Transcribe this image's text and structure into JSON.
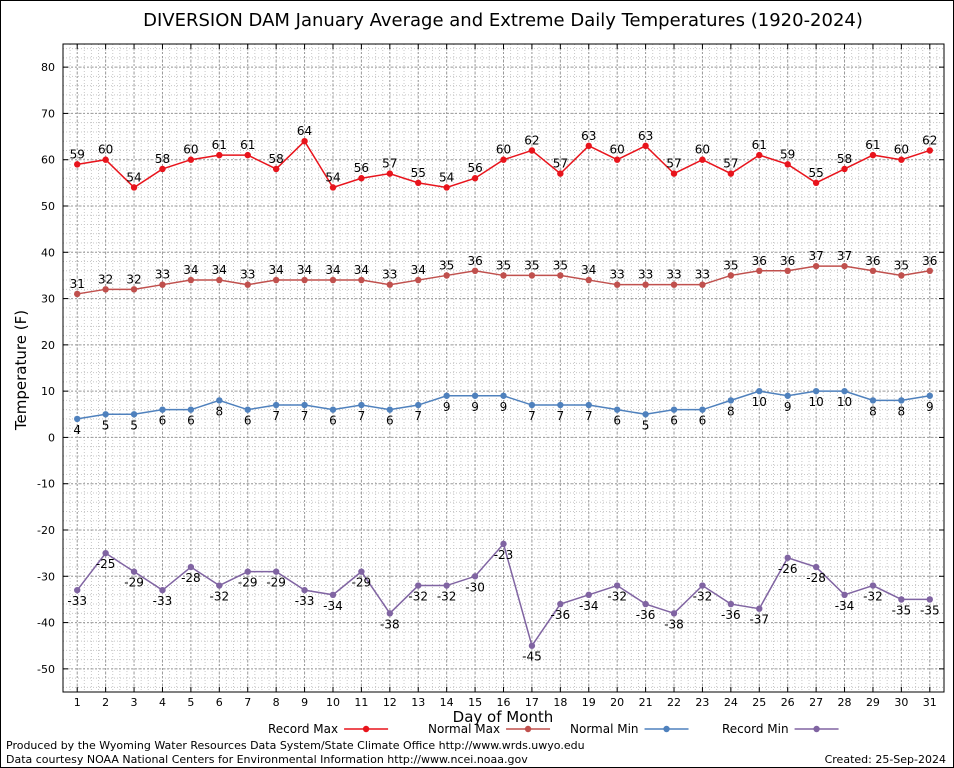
{
  "chart_data": {
    "type": "line",
    "title": "DIVERSION DAM January Average and Extreme Daily Temperatures (1920-2024)",
    "xlabel": "Day of Month",
    "ylabel": "Temperature (F)",
    "ylim": [
      -55,
      85
    ],
    "yticks": [
      -50,
      -40,
      -30,
      -20,
      -10,
      0,
      10,
      20,
      30,
      40,
      50,
      60,
      70,
      80
    ],
    "grid": true,
    "legend_position": "bottom",
    "x": [
      1,
      2,
      3,
      4,
      5,
      6,
      7,
      8,
      9,
      10,
      11,
      12,
      13,
      14,
      15,
      16,
      17,
      18,
      19,
      20,
      21,
      22,
      23,
      24,
      25,
      26,
      27,
      28,
      29,
      30,
      31
    ],
    "series": [
      {
        "name": "Record Max",
        "color": "#e8141c",
        "values": [
          59,
          60,
          54,
          58,
          60,
          61,
          61,
          58,
          64,
          54,
          56,
          57,
          55,
          54,
          56,
          60,
          62,
          57,
          63,
          60,
          63,
          57,
          60,
          57,
          61,
          59,
          55,
          58,
          61,
          60,
          62
        ]
      },
      {
        "name": "Normal Max",
        "color": "#c0504d",
        "values": [
          31,
          32,
          32,
          33,
          34,
          34,
          33,
          34,
          34,
          34,
          34,
          33,
          34,
          35,
          36,
          35,
          35,
          35,
          34,
          33,
          33,
          33,
          33,
          35,
          36,
          36,
          37,
          37,
          36,
          35,
          36
        ]
      },
      {
        "name": "Normal Min",
        "color": "#4f81bd",
        "values": [
          4,
          5,
          5,
          6,
          6,
          8,
          6,
          7,
          7,
          6,
          7,
          6,
          7,
          9,
          9,
          9,
          7,
          7,
          7,
          6,
          5,
          6,
          6,
          8,
          10,
          9,
          10,
          10,
          8,
          8,
          9
        ]
      },
      {
        "name": "Record Min",
        "color": "#8064a2",
        "values": [
          -33,
          -25,
          -29,
          -33,
          -28,
          -32,
          -29,
          -29,
          -33,
          -34,
          -29,
          -38,
          -32,
          -32,
          -30,
          -23,
          -45,
          -36,
          -34,
          -32,
          -36,
          -38,
          -32,
          -36,
          -37,
          -26,
          -28,
          -34,
          -32,
          -35,
          -35
        ]
      }
    ]
  },
  "footer": {
    "produced_by": "Produced by the Wyoming Water Resources Data System/State Climate Office http://www.wrds.uwyo.edu",
    "courtesy": "Data courtesy NOAA National Centers for Environmental Information http://www.ncei.noaa.gov",
    "created": "Created: 25-Sep-2024"
  }
}
